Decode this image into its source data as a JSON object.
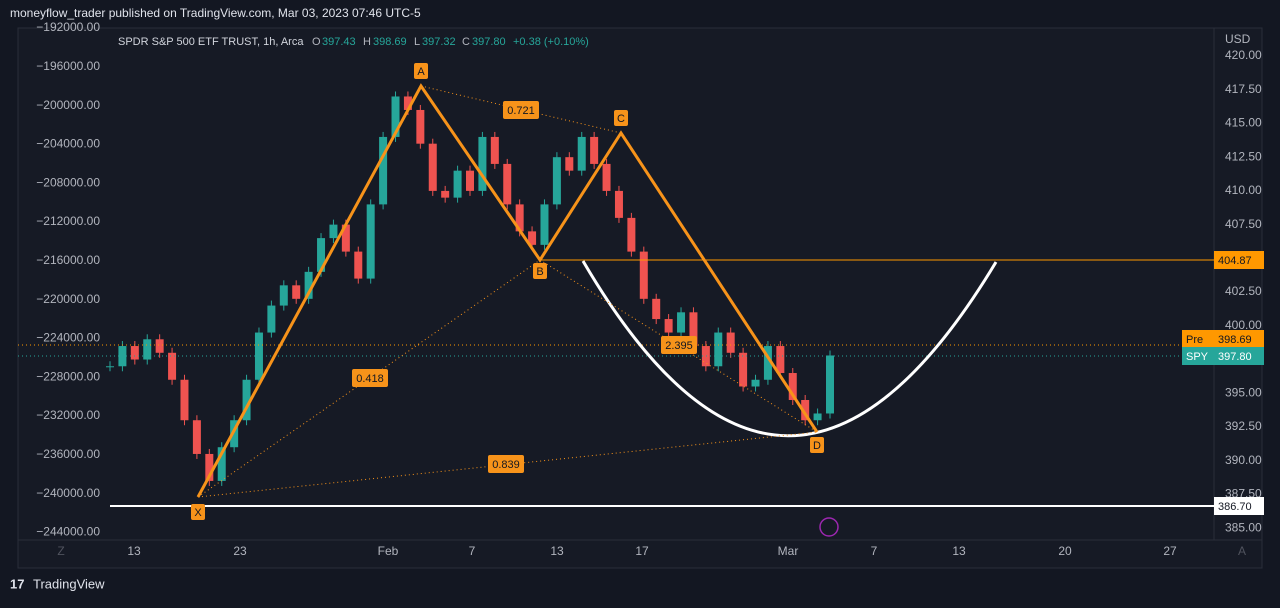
{
  "header": {
    "text": "moneyflow_trader published on TradingView.com, Mar 03, 2023 07:46 UTC-5"
  },
  "legend": {
    "symbol": "SPDR S&P 500 ETF TRUST, 1h, Arca",
    "o_label": "O",
    "o": "397.43",
    "h_label": "H",
    "h": "398.69",
    "l_label": "L",
    "l": "397.32",
    "c_label": "C",
    "c": "397.80",
    "change": "+0.38 (+0.10%)"
  },
  "currency": "USD",
  "left_axis": [
    "−192000.00",
    "−196000.00",
    "−200000.00",
    "−204000.00",
    "−208000.00",
    "−212000.00",
    "−216000.00",
    "−220000.00",
    "−224000.00",
    "−228000.00",
    "−232000.00",
    "−236000.00",
    "−240000.00",
    "−244000.00"
  ],
  "right_axis": [
    "420.00",
    "417.50",
    "415.00",
    "412.50",
    "410.00",
    "407.50",
    "402.50",
    "400.00",
    "395.00",
    "392.50",
    "390.00",
    "387.50",
    "385.00"
  ],
  "x_axis": [
    "13",
    "23",
    "Feb",
    "7",
    "13",
    "17",
    "Mar",
    "7",
    "13",
    "20",
    "27"
  ],
  "corner_left": "Z",
  "corner_right": "A",
  "pattern_points": [
    "X",
    "A",
    "B",
    "C",
    "D"
  ],
  "ratios": [
    "0.721",
    "0.418",
    "2.395",
    "0.839"
  ],
  "price_labels": {
    "resistance": "404.87",
    "pre_tag": "Pre",
    "pre": "398.69",
    "spy_tag": "SPY",
    "spy": "397.80",
    "support": "386.70"
  },
  "price_path": [
    397.0,
    398.5,
    397.5,
    399.0,
    398.0,
    396.0,
    393.0,
    390.5,
    388.5,
    391.0,
    393.0,
    396.0,
    399.5,
    401.5,
    403.0,
    402.0,
    404.0,
    406.5,
    407.5,
    405.5,
    403.5,
    409.0,
    414.0,
    417.0,
    416.0,
    413.5,
    410.0,
    409.5,
    411.5,
    410.0,
    414.0,
    412.0,
    409.0,
    407.0,
    406.0,
    409.0,
    412.5,
    411.5,
    414.0,
    412.0,
    410.0,
    408.0,
    405.5,
    402.0,
    400.5,
    399.5,
    401.0,
    398.5,
    397.0,
    399.5,
    398.0,
    395.5,
    396.0,
    398.5,
    396.5,
    394.5,
    393.0,
    393.5,
    397.8
  ],
  "footer": {
    "brand": "TradingView"
  }
}
